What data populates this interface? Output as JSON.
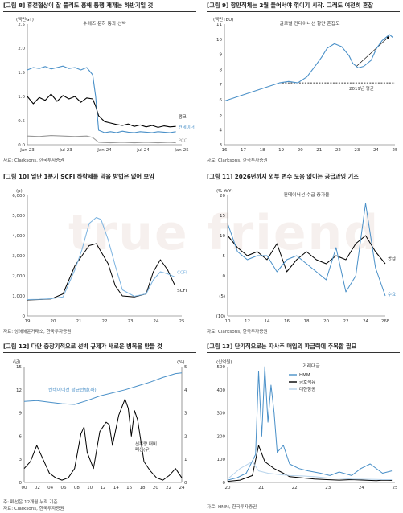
{
  "watermark": "true friend",
  "chart_data": [
    {
      "type": "line",
      "title": "[그림 8] 휴전협상이 잘 풀려도 홍해 통행 재개는 하반기일 것",
      "source": "자료: Clarksons, 한국투자증권",
      "ylabel": "(백만GT)",
      "annotation": "수에즈 운하 통과 선박",
      "ylim": [
        0,
        2.5
      ],
      "yticks": [
        "0.0",
        "0.5",
        "1.0",
        "1.5",
        "2.0",
        "2.5"
      ],
      "xticks": [
        "Jan-23",
        "Jul-23",
        "Jan-24",
        "Jul-24",
        "Jan-25"
      ],
      "xlim": [
        0,
        26
      ],
      "series": [
        {
          "name": "탱크",
          "color": "#000000",
          "x": [
            0,
            1,
            2,
            3,
            4,
            5,
            6,
            7,
            8,
            9,
            10,
            11,
            11.5,
            12,
            13,
            14,
            15,
            16,
            17,
            18,
            19,
            20,
            21,
            22,
            23,
            24,
            25
          ],
          "y": [
            1.0,
            0.85,
            0.98,
            0.92,
            1.05,
            0.9,
            1.02,
            0.95,
            1.0,
            0.88,
            0.97,
            0.95,
            0.8,
            0.6,
            0.48,
            0.45,
            0.42,
            0.4,
            0.43,
            0.38,
            0.41,
            0.37,
            0.4,
            0.36,
            0.39,
            0.37,
            0.38
          ]
        },
        {
          "name": "컨테이너",
          "color": "#4a90c8",
          "x": [
            0,
            1,
            2,
            3,
            4,
            5,
            6,
            7,
            8,
            9,
            10,
            11,
            11.5,
            12,
            13,
            14,
            15,
            16,
            17,
            18,
            19,
            20,
            21,
            22,
            23,
            24,
            25
          ],
          "y": [
            1.55,
            1.6,
            1.58,
            1.62,
            1.57,
            1.6,
            1.63,
            1.58,
            1.6,
            1.55,
            1.6,
            1.45,
            1.0,
            0.3,
            0.25,
            0.27,
            0.25,
            0.28,
            0.26,
            0.25,
            0.27,
            0.26,
            0.25,
            0.27,
            0.26,
            0.25,
            0.27
          ]
        },
        {
          "name": "PCC",
          "color": "#999999",
          "x": [
            0,
            2,
            4,
            6,
            8,
            10,
            11,
            12,
            14,
            16,
            18,
            20,
            22,
            24,
            25
          ],
          "y": [
            0.18,
            0.17,
            0.19,
            0.18,
            0.17,
            0.18,
            0.15,
            0.05,
            0.04,
            0.05,
            0.04,
            0.05,
            0.04,
            0.05,
            0.04
          ]
        }
      ]
    },
    {
      "type": "line",
      "title": "[그림 9] 항만적체는 2월 들어서야 꺾이기 시작. 그래도 여전히 혼잡",
      "source": "자료: Clarksons, 한국투자증권",
      "ylabel": "(백만TEU)",
      "annotation": "글로벌 컨테이너선 항만 혼잡도",
      "ylim": [
        3,
        11
      ],
      "yticks": [
        "3",
        "4",
        "5",
        "6",
        "7",
        "8",
        "9",
        "10",
        "11"
      ],
      "xticks": [
        "16",
        "17",
        "18",
        "19",
        "20",
        "21",
        "22",
        "23",
        "24",
        "25"
      ],
      "xlim": [
        16,
        25.3
      ],
      "reference": {
        "label": "2019년 평균",
        "value": 7.1
      },
      "series": [
        {
          "name": "혼잡도",
          "color": "#4a90c8",
          "x": [
            16,
            16.5,
            17,
            17.5,
            18,
            18.5,
            19,
            19.5,
            20,
            20.5,
            21,
            21.3,
            21.6,
            22,
            22.4,
            22.8,
            23,
            23.3,
            23.6,
            24,
            24.3,
            24.6,
            25,
            25.2
          ],
          "y": [
            5.9,
            6.1,
            6.3,
            6.5,
            6.7,
            6.9,
            7.1,
            7.2,
            7.1,
            7.5,
            8.3,
            8.8,
            9.4,
            9.7,
            9.5,
            8.9,
            8.4,
            8.1,
            8.2,
            8.6,
            9.4,
            9.9,
            10.3,
            10.1
          ]
        }
      ]
    },
    {
      "type": "line",
      "title": "[그림 10] 일단 1분기 SCFI 하락세를 막을 방법은 없어 보임",
      "source": "자료: 상해해운거래소, 한국투자증권",
      "ylabel": "(p)",
      "ylim": [
        0,
        6000
      ],
      "yticks": [
        "0",
        "1,000",
        "2,000",
        "3,000",
        "4,000",
        "5,000",
        "6,000"
      ],
      "xticks": [
        "19",
        "20",
        "21",
        "22",
        "23",
        "24",
        "25"
      ],
      "xlim": [
        19,
        25.5
      ],
      "series": [
        {
          "name": "SCFI",
          "color": "#000000",
          "x": [
            19,
            19.5,
            20,
            20.5,
            21,
            21.3,
            21.6,
            21.9,
            22.1,
            22.4,
            22.7,
            23,
            23.5,
            24,
            24.3,
            24.6,
            24.9,
            25.2
          ],
          "y": [
            800,
            820,
            850,
            1100,
            2500,
            3000,
            3500,
            3600,
            3200,
            2600,
            1500,
            1000,
            950,
            1100,
            2200,
            2800,
            2300,
            1550
          ]
        },
        {
          "name": "CCFI",
          "color": "#7bb3e0",
          "x": [
            19,
            19.5,
            20,
            20.5,
            21,
            21.3,
            21.6,
            21.9,
            22.1,
            22.4,
            22.7,
            23,
            23.5,
            24,
            24.3,
            24.6,
            24.9,
            25.2
          ],
          "y": [
            820,
            830,
            860,
            950,
            2300,
            3300,
            4600,
            4900,
            4800,
            3800,
            2500,
            1300,
            980,
            1100,
            1800,
            2200,
            2100,
            1950
          ]
        }
      ]
    },
    {
      "type": "line",
      "title": "[그림 11] 2026년까지 외부 변수 도움 없이는 공급과잉 기조",
      "source": "자료: Clarksons, 한국투자증권",
      "ylabel": "(% YoY)",
      "annotation": "컨테이너선 수급 증가율",
      "ylim": [
        -10,
        20
      ],
      "yticks": [
        "(10)",
        "(5)",
        "0",
        "5",
        "10",
        "15",
        "20"
      ],
      "xticks": [
        "10",
        "12",
        "14",
        "16",
        "18",
        "20",
        "22",
        "24",
        "26F"
      ],
      "xlim": [
        10,
        26
      ],
      "series": [
        {
          "name": "공급",
          "color": "#000000",
          "x": [
            10,
            11,
            12,
            13,
            14,
            15,
            16,
            17,
            18,
            19,
            20,
            21,
            22,
            23,
            24,
            25,
            26
          ],
          "y": [
            10,
            7,
            5,
            6,
            4,
            8,
            1,
            4,
            6,
            4,
            3,
            5,
            4,
            8,
            10,
            6,
            3
          ]
        },
        {
          "name": "수요",
          "color": "#4a90c8",
          "x": [
            10,
            11,
            12,
            13,
            14,
            15,
            16,
            17,
            18,
            19,
            20,
            21,
            22,
            23,
            24,
            25,
            26
          ],
          "y": [
            13,
            6,
            4,
            5,
            5,
            1,
            4,
            5,
            3,
            1,
            -1,
            7,
            -4,
            0,
            18,
            2,
            -5
          ]
        }
      ]
    },
    {
      "type": "line",
      "title": "[그림 12] 다만 중장기적으로 선박 규제가 새로운 병목을 만들 것",
      "source": "주: 폐선은 12개월 누적 기준\n자료: Clarksons, 한국투자증권",
      "ylabel": "(년)",
      "ylabel_right": "(%)",
      "ylim": [
        0,
        15
      ],
      "ylim_right": [
        0,
        5
      ],
      "yticks": [
        "0",
        "3",
        "6",
        "9",
        "12",
        "15"
      ],
      "yticks_right": [
        "0",
        "1",
        "2",
        "3",
        "4",
        "5"
      ],
      "xticks": [
        "00",
        "02",
        "04",
        "06",
        "08",
        "10",
        "12",
        "14",
        "16",
        "18",
        "20",
        "22",
        "24"
      ],
      "xlim": [
        0,
        25
      ],
      "annotations": [
        "컨테이너선 평균선령(좌)",
        "선복량 대비\n폐선(우)"
      ],
      "series": [
        {
          "name": "컨테이너선 평균선령(좌)",
          "color": "#4a90c8",
          "x": [
            0,
            2,
            4,
            6,
            8,
            10,
            12,
            14,
            16,
            18,
            20,
            22,
            24,
            25
          ],
          "y": [
            10.5,
            10.6,
            10.4,
            10.2,
            10.1,
            10.6,
            11.2,
            11.6,
            12.0,
            12.5,
            13.0,
            13.6,
            14.1,
            14.2
          ]
        },
        {
          "name": "선복량 대비 폐선(우)",
          "color": "#000000",
          "x": [
            0,
            1,
            2,
            3,
            4,
            5,
            6,
            7,
            8,
            9,
            9.5,
            10,
            11,
            12,
            13,
            13.5,
            14,
            15,
            16,
            16.5,
            17,
            17.5,
            18,
            19,
            20,
            21,
            22,
            23,
            24,
            25
          ],
          "y": [
            0.6,
            0.9,
            1.6,
            1.0,
            0.4,
            0.2,
            0.1,
            0.2,
            0.6,
            2.1,
            2.4,
            1.3,
            0.6,
            2.2,
            2.6,
            2.5,
            1.6,
            2.9,
            3.6,
            3.2,
            2.0,
            3.1,
            2.7,
            0.9,
            0.5,
            0.2,
            0.1,
            0.3,
            0.6,
            0.2
          ]
        }
      ]
    },
    {
      "type": "line",
      "title": "[그림 13] 단기적으로는 자사주 매입의 파급력에 주목할 필요",
      "source": "자료: HMM, 한국투자증권",
      "ylabel": "(십억원)",
      "annotation": "거래대금",
      "ylim": [
        0,
        500
      ],
      "yticks": [
        "0",
        "100",
        "200",
        "300",
        "400",
        "500"
      ],
      "xticks": [
        "20",
        "21",
        "22",
        "23",
        "24",
        "25"
      ],
      "xlim": [
        20,
        25.4
      ],
      "series": [
        {
          "name": "HMM",
          "color": "#4a90c8",
          "x": [
            20,
            20.3,
            20.6,
            20.9,
            21.0,
            21.1,
            21.2,
            21.3,
            21.4,
            21.5,
            21.6,
            21.8,
            22.0,
            22.3,
            22.6,
            23.0,
            23.3,
            23.6,
            24.0,
            24.3,
            24.6,
            25.0,
            25.3
          ],
          "y": [
            10,
            20,
            40,
            120,
            480,
            200,
            500,
            260,
            420,
            300,
            130,
            160,
            80,
            60,
            50,
            40,
            30,
            45,
            30,
            60,
            80,
            40,
            50
          ]
        },
        {
          "name": "금호석유",
          "color": "#000000",
          "x": [
            20,
            20.4,
            20.8,
            21.0,
            21.2,
            21.5,
            21.8,
            22.0,
            22.4,
            22.8,
            23.2,
            23.6,
            24.0,
            24.4,
            24.8,
            25.0,
            25.3
          ],
          "y": [
            5,
            10,
            30,
            160,
            90,
            60,
            40,
            25,
            20,
            15,
            12,
            10,
            12,
            10,
            8,
            10,
            9
          ]
        },
        {
          "name": "대한항공",
          "color": "#b8d4ec",
          "x": [
            20,
            20.4,
            20.8,
            21.0,
            21.3,
            21.6,
            22.0,
            22.4,
            22.8,
            23.2,
            23.6,
            24.0,
            24.4,
            24.8,
            25.0,
            25.3
          ],
          "y": [
            15,
            60,
            90,
            50,
            40,
            35,
            30,
            28,
            25,
            20,
            18,
            15,
            14,
            13,
            12,
            12
          ]
        }
      ]
    }
  ]
}
